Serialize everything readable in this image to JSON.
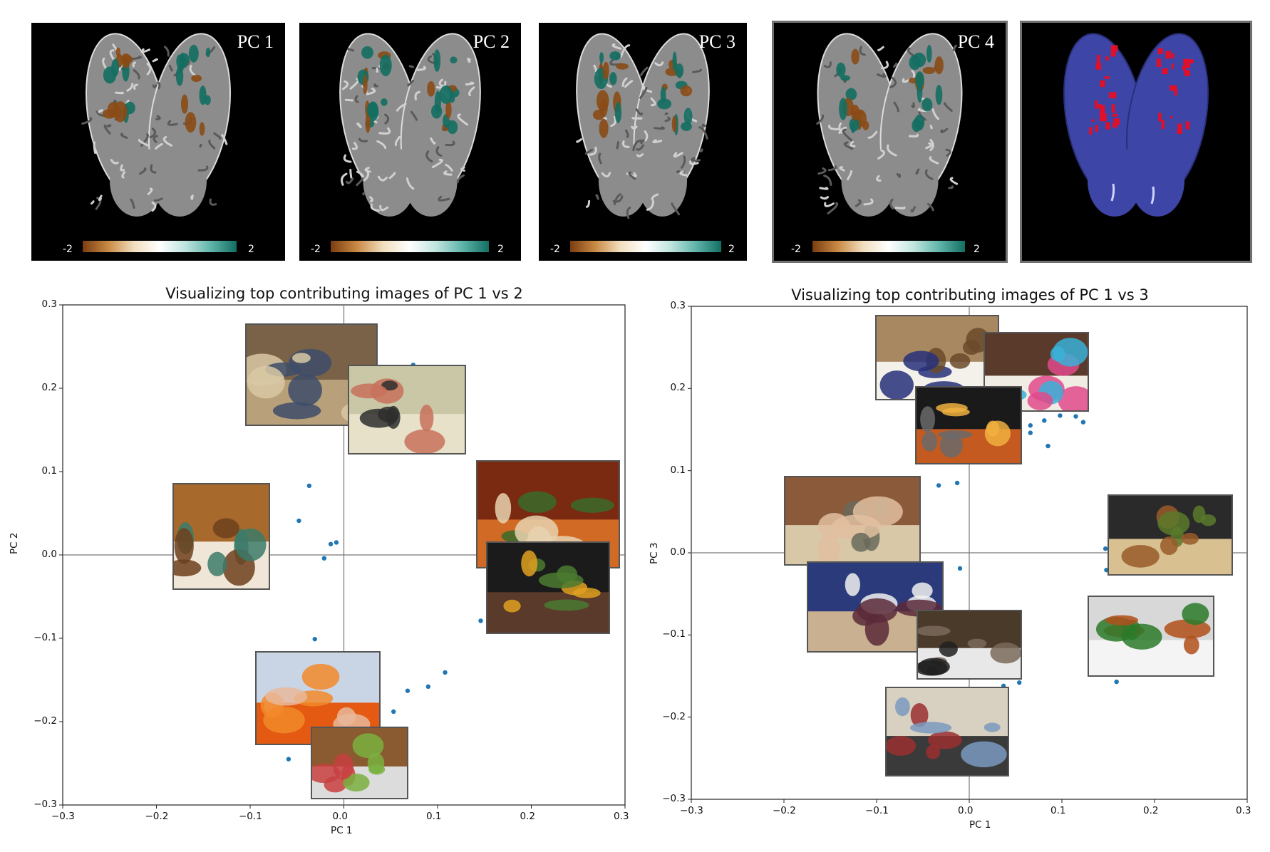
{
  "brain_panels": [
    {
      "label": "PC 1",
      "cb_min": "-2",
      "cb_max": "2"
    },
    {
      "label": "PC 2",
      "cb_min": "-2",
      "cb_max": "2"
    },
    {
      "label": "PC 3",
      "cb_min": "-2",
      "cb_max": "2"
    },
    {
      "label": "PC 4",
      "cb_min": "-2",
      "cb_max": "2"
    },
    {
      "label": "",
      "cb_min": "",
      "cb_max": ""
    }
  ],
  "colors": {
    "negative": "#8a4a15",
    "positive": "#136e62",
    "roi_red": "#e0102a",
    "roi_blue": "#3d45a6",
    "point": "#1f77b4"
  },
  "chart_data": [
    {
      "type": "scatter",
      "title": "Visualizing top contributing images of PC 1 vs 2",
      "xlabel": "PC 1",
      "ylabel": "PC 2",
      "xlim": [
        -0.3,
        0.3
      ],
      "ylim": [
        -0.3,
        0.3
      ],
      "xticks": [
        "−0.3",
        "−0.2",
        "−0.1",
        "0.0",
        "0.1",
        "0.2",
        "0.3"
      ],
      "yticks": [
        "0.3",
        "0.2",
        "0.1",
        "0.0",
        "−0.1",
        "−0.2",
        "−0.3"
      ],
      "grid": false,
      "points": [
        {
          "x": -0.037,
          "y": 0.083
        },
        {
          "x": -0.048,
          "y": 0.041
        },
        {
          "x": -0.014,
          "y": 0.013
        },
        {
          "x": -0.008,
          "y": 0.015
        },
        {
          "x": -0.021,
          "y": -0.004
        },
        {
          "x": -0.031,
          "y": -0.101
        },
        {
          "x": 0.146,
          "y": -0.079
        },
        {
          "x": 0.108,
          "y": -0.141
        },
        {
          "x": 0.09,
          "y": -0.158
        },
        {
          "x": 0.068,
          "y": -0.163
        },
        {
          "x": 0.053,
          "y": -0.188
        },
        {
          "x": -0.059,
          "y": -0.245
        },
        {
          "x": 0.074,
          "y": 0.228
        }
      ],
      "thumbnails": [
        {
          "name": "kitchen-shelves-thumb",
          "scene": "kitchen"
        },
        {
          "name": "hallway-kitchen-thumb",
          "scene": "hallway"
        },
        {
          "name": "woman-in-kitchen-thumb",
          "scene": "woman"
        },
        {
          "name": "stir-fry-dish-thumb",
          "scene": "stirfry"
        },
        {
          "name": "roasting-tray-thumb",
          "scene": "tray"
        },
        {
          "name": "tangerines-thumb",
          "scene": "oranges"
        },
        {
          "name": "fruit-bowl-thumb",
          "scene": "fruitbowl"
        }
      ]
    },
    {
      "type": "scatter",
      "title": "Visualizing top contributing images of PC 1 vs 3",
      "xlabel": "PC 1",
      "ylabel": "PC 3",
      "xlim": [
        -0.3,
        0.3
      ],
      "ylim": [
        -0.3,
        0.3
      ],
      "xticks": [
        "−0.3",
        "−0.2",
        "−0.1",
        "0.0",
        "0.1",
        "0.2",
        "0.3"
      ],
      "yticks": [
        "0.3",
        "0.2",
        "0.1",
        "0.0",
        "−0.1",
        "−0.2",
        "−0.3"
      ],
      "grid": false,
      "points": [
        {
          "x": 0.066,
          "y": 0.155
        },
        {
          "x": 0.066,
          "y": 0.146
        },
        {
          "x": 0.081,
          "y": 0.161
        },
        {
          "x": 0.098,
          "y": 0.167
        },
        {
          "x": 0.115,
          "y": 0.166
        },
        {
          "x": 0.123,
          "y": 0.159
        },
        {
          "x": 0.085,
          "y": 0.13
        },
        {
          "x": -0.033,
          "y": 0.082
        },
        {
          "x": -0.013,
          "y": 0.085
        },
        {
          "x": -0.01,
          "y": -0.019
        },
        {
          "x": 0.147,
          "y": 0.005
        },
        {
          "x": 0.148,
          "y": -0.021
        },
        {
          "x": 0.159,
          "y": -0.157
        },
        {
          "x": 0.037,
          "y": -0.162
        },
        {
          "x": 0.054,
          "y": -0.158
        },
        {
          "x": 0.037,
          "y": -0.258
        }
      ],
      "thumbnails": [
        {
          "name": "wedding-cake-thumb",
          "scene": "cake"
        },
        {
          "name": "donuts-thumb",
          "scene": "donuts"
        },
        {
          "name": "pizza-oven-thumb",
          "scene": "oven"
        },
        {
          "name": "man-eating-thumb",
          "scene": "man"
        },
        {
          "name": "pizza-thumb",
          "scene": "pizza"
        },
        {
          "name": "women-dining-thumb",
          "scene": "women"
        },
        {
          "name": "chefs-kitchen-thumb",
          "scene": "chefs"
        },
        {
          "name": "curry-plate-thumb",
          "scene": "curry"
        },
        {
          "name": "group-table-thumb",
          "scene": "group"
        }
      ]
    }
  ]
}
